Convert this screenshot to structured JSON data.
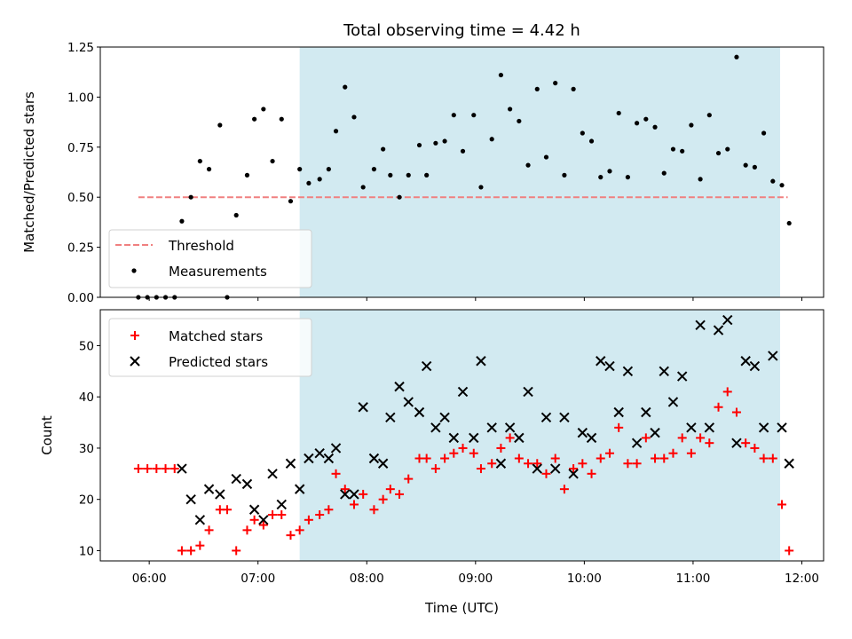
{
  "figure": {
    "title": "Total observing time = 4.42 h"
  },
  "chart_data": [
    {
      "type": "scatter",
      "title": "Total observing time = 4.42 h",
      "xlabel": "",
      "ylabel": "Matched/Predicted stars",
      "ylim": [
        0,
        1.25
      ],
      "yticks": [
        "0.00",
        "0.25",
        "0.50",
        "0.75",
        "1.00",
        "1.25"
      ],
      "shaded_interval_hours": [
        7.383,
        11.8
      ],
      "shade_color": "#add8e6",
      "threshold": {
        "name": "Threshold",
        "value": 0.5,
        "x_range_hours": [
          5.9,
          11.87
        ],
        "color": "#f08080",
        "style": "dashed"
      },
      "legend": {
        "position": "lower-left",
        "entries": [
          "Threshold",
          "Measurements"
        ]
      },
      "series": [
        {
          "name": "Measurements",
          "color": "#000000",
          "marker": "dot",
          "points": [
            [
              "05:54",
              0.0
            ],
            [
              "05:59",
              0.0
            ],
            [
              "06:04",
              0.0
            ],
            [
              "06:09",
              0.0
            ],
            [
              "06:14",
              0.0
            ],
            [
              "06:18",
              0.38
            ],
            [
              "06:23",
              0.5
            ],
            [
              "06:28",
              0.68
            ],
            [
              "06:33",
              0.64
            ],
            [
              "06:39",
              0.86
            ],
            [
              "06:43",
              0.0
            ],
            [
              "06:48",
              0.41
            ],
            [
              "06:54",
              0.61
            ],
            [
              "06:58",
              0.89
            ],
            [
              "07:03",
              0.94
            ],
            [
              "07:08",
              0.68
            ],
            [
              "07:13",
              0.89
            ],
            [
              "07:18",
              0.48
            ],
            [
              "07:23",
              0.64
            ],
            [
              "07:28",
              0.57
            ],
            [
              "07:34",
              0.59
            ],
            [
              "07:39",
              0.64
            ],
            [
              "07:43",
              0.83
            ],
            [
              "07:48",
              1.05
            ],
            [
              "07:53",
              0.9
            ],
            [
              "07:58",
              0.55
            ],
            [
              "08:04",
              0.64
            ],
            [
              "08:09",
              0.74
            ],
            [
              "08:13",
              0.61
            ],
            [
              "08:18",
              0.5
            ],
            [
              "08:23",
              0.61
            ],
            [
              "08:29",
              0.76
            ],
            [
              "08:33",
              0.61
            ],
            [
              "08:38",
              0.77
            ],
            [
              "08:43",
              0.78
            ],
            [
              "08:48",
              0.91
            ],
            [
              "08:53",
              0.73
            ],
            [
              "08:59",
              0.91
            ],
            [
              "09:03",
              0.55
            ],
            [
              "09:09",
              0.79
            ],
            [
              "09:14",
              1.11
            ],
            [
              "09:19",
              0.94
            ],
            [
              "09:24",
              0.88
            ],
            [
              "09:29",
              0.66
            ],
            [
              "09:34",
              1.04
            ],
            [
              "09:39",
              0.7
            ],
            [
              "09:44",
              1.07
            ],
            [
              "09:49",
              0.61
            ],
            [
              "09:54",
              1.04
            ],
            [
              "09:59",
              0.82
            ],
            [
              "10:04",
              0.78
            ],
            [
              "10:09",
              0.6
            ],
            [
              "10:14",
              0.63
            ],
            [
              "10:19",
              0.92
            ],
            [
              "10:24",
              0.6
            ],
            [
              "10:29",
              0.87
            ],
            [
              "10:34",
              0.89
            ],
            [
              "10:39",
              0.85
            ],
            [
              "10:44",
              0.62
            ],
            [
              "10:49",
              0.74
            ],
            [
              "10:54",
              0.73
            ],
            [
              "10:59",
              0.86
            ],
            [
              "11:04",
              0.59
            ],
            [
              "11:09",
              0.91
            ],
            [
              "11:14",
              0.72
            ],
            [
              "11:19",
              0.74
            ],
            [
              "11:24",
              1.2
            ],
            [
              "11:29",
              0.66
            ],
            [
              "11:34",
              0.65
            ],
            [
              "11:39",
              0.82
            ],
            [
              "11:44",
              0.58
            ],
            [
              "11:49",
              0.56
            ],
            [
              "11:53",
              0.37
            ]
          ]
        }
      ]
    },
    {
      "type": "scatter",
      "title": "",
      "xlabel": "Time (UTC)",
      "ylabel": "Count",
      "ylim": [
        8,
        57
      ],
      "yticks": [
        "10",
        "20",
        "30",
        "40",
        "50"
      ],
      "xticks": [
        "06:00",
        "07:00",
        "08:00",
        "09:00",
        "10:00",
        "11:00",
        "12:00"
      ],
      "xlim": [
        "05:33",
        "12:12"
      ],
      "shaded_interval_hours": [
        7.383,
        11.8
      ],
      "shade_color": "#add8e6",
      "legend": {
        "position": "top-left",
        "entries": [
          "Matched stars",
          "Predicted stars"
        ]
      },
      "series": [
        {
          "name": "Matched stars",
          "color": "#ff0000",
          "marker": "plus",
          "points": [
            [
              "05:54",
              26
            ],
            [
              "05:59",
              26
            ],
            [
              "06:04",
              26
            ],
            [
              "06:09",
              26
            ],
            [
              "06:14",
              26
            ],
            [
              "06:18",
              10
            ],
            [
              "06:23",
              10
            ],
            [
              "06:28",
              11
            ],
            [
              "06:33",
              14
            ],
            [
              "06:39",
              18
            ],
            [
              "06:43",
              18
            ],
            [
              "06:48",
              10
            ],
            [
              "06:54",
              14
            ],
            [
              "06:58",
              16
            ],
            [
              "07:03",
              15
            ],
            [
              "07:08",
              17
            ],
            [
              "07:13",
              17
            ],
            [
              "07:18",
              13
            ],
            [
              "07:23",
              14
            ],
            [
              "07:28",
              16
            ],
            [
              "07:34",
              17
            ],
            [
              "07:39",
              18
            ],
            [
              "07:43",
              25
            ],
            [
              "07:48",
              22
            ],
            [
              "07:53",
              19
            ],
            [
              "07:58",
              21
            ],
            [
              "08:04",
              18
            ],
            [
              "08:09",
              20
            ],
            [
              "08:13",
              22
            ],
            [
              "08:18",
              21
            ],
            [
              "08:23",
              24
            ],
            [
              "08:29",
              28
            ],
            [
              "08:33",
              28
            ],
            [
              "08:38",
              26
            ],
            [
              "08:43",
              28
            ],
            [
              "08:48",
              29
            ],
            [
              "08:53",
              30
            ],
            [
              "08:59",
              29
            ],
            [
              "09:03",
              26
            ],
            [
              "09:09",
              27
            ],
            [
              "09:14",
              30
            ],
            [
              "09:19",
              32
            ],
            [
              "09:24",
              28
            ],
            [
              "09:29",
              27
            ],
            [
              "09:34",
              27
            ],
            [
              "09:39",
              25
            ],
            [
              "09:44",
              28
            ],
            [
              "09:49",
              22
            ],
            [
              "09:54",
              26
            ],
            [
              "09:59",
              27
            ],
            [
              "10:04",
              25
            ],
            [
              "10:09",
              28
            ],
            [
              "10:14",
              29
            ],
            [
              "10:19",
              34
            ],
            [
              "10:24",
              27
            ],
            [
              "10:29",
              27
            ],
            [
              "10:34",
              32
            ],
            [
              "10:39",
              28
            ],
            [
              "10:44",
              28
            ],
            [
              "10:49",
              29
            ],
            [
              "10:54",
              32
            ],
            [
              "10:59",
              29
            ],
            [
              "11:04",
              32
            ],
            [
              "11:09",
              31
            ],
            [
              "11:14",
              38
            ],
            [
              "11:19",
              41
            ],
            [
              "11:24",
              37
            ],
            [
              "11:29",
              31
            ],
            [
              "11:34",
              30
            ],
            [
              "11:39",
              28
            ],
            [
              "11:44",
              28
            ],
            [
              "11:49",
              19
            ],
            [
              "11:53",
              10
            ]
          ]
        },
        {
          "name": "Predicted stars",
          "color": "#000000",
          "marker": "x",
          "points": [
            [
              "06:18",
              26
            ],
            [
              "06:23",
              20
            ],
            [
              "06:28",
              16
            ],
            [
              "06:33",
              22
            ],
            [
              "06:39",
              21
            ],
            [
              "06:48",
              24
            ],
            [
              "06:54",
              23
            ],
            [
              "06:58",
              18
            ],
            [
              "07:03",
              16
            ],
            [
              "07:08",
              25
            ],
            [
              "07:13",
              19
            ],
            [
              "07:18",
              27
            ],
            [
              "07:23",
              22
            ],
            [
              "07:28",
              28
            ],
            [
              "07:34",
              29
            ],
            [
              "07:39",
              28
            ],
            [
              "07:43",
              30
            ],
            [
              "07:48",
              21
            ],
            [
              "07:53",
              21
            ],
            [
              "07:58",
              38
            ],
            [
              "08:04",
              28
            ],
            [
              "08:09",
              27
            ],
            [
              "08:13",
              36
            ],
            [
              "08:18",
              42
            ],
            [
              "08:23",
              39
            ],
            [
              "08:29",
              37
            ],
            [
              "08:33",
              46
            ],
            [
              "08:38",
              34
            ],
            [
              "08:43",
              36
            ],
            [
              "08:48",
              32
            ],
            [
              "08:53",
              41
            ],
            [
              "08:59",
              32
            ],
            [
              "09:03",
              47
            ],
            [
              "09:09",
              34
            ],
            [
              "09:14",
              27
            ],
            [
              "09:19",
              34
            ],
            [
              "09:24",
              32
            ],
            [
              "09:29",
              41
            ],
            [
              "09:34",
              26
            ],
            [
              "09:39",
              36
            ],
            [
              "09:44",
              26
            ],
            [
              "09:49",
              36
            ],
            [
              "09:54",
              25
            ],
            [
              "09:59",
              33
            ],
            [
              "10:04",
              32
            ],
            [
              "10:09",
              47
            ],
            [
              "10:14",
              46
            ],
            [
              "10:19",
              37
            ],
            [
              "10:24",
              45
            ],
            [
              "10:29",
              31
            ],
            [
              "10:34",
              37
            ],
            [
              "10:39",
              33
            ],
            [
              "10:44",
              45
            ],
            [
              "10:49",
              39
            ],
            [
              "10:54",
              44
            ],
            [
              "10:59",
              34
            ],
            [
              "11:04",
              54
            ],
            [
              "11:09",
              34
            ],
            [
              "11:14",
              53
            ],
            [
              "11:19",
              55
            ],
            [
              "11:24",
              31
            ],
            [
              "11:29",
              47
            ],
            [
              "11:34",
              46
            ],
            [
              "11:39",
              34
            ],
            [
              "11:44",
              48
            ],
            [
              "11:49",
              34
            ],
            [
              "11:53",
              27
            ]
          ]
        }
      ]
    }
  ]
}
